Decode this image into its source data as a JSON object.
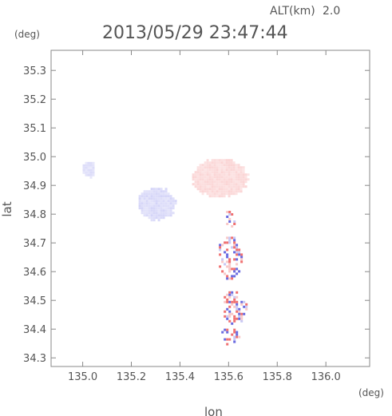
{
  "header": {
    "altitude_label": "ALT(km)",
    "altitude_value": "2.0",
    "timestamp": "2013/05/29 23:47:44"
  },
  "chart_data": {
    "type": "heatmap",
    "xlabel": "lon",
    "ylabel": "lat",
    "x_unit": "(deg)",
    "y_unit": "(deg)",
    "xlim": [
      134.87,
      136.18
    ],
    "ylim": [
      34.27,
      35.37
    ],
    "x_ticks": [
      135.0,
      135.2,
      135.4,
      135.6,
      135.8,
      136.0
    ],
    "y_ticks": [
      34.3,
      34.4,
      34.5,
      34.6,
      34.7,
      34.8,
      34.9,
      35.0,
      35.1,
      35.2,
      35.3
    ],
    "x_tick_labels": [
      "135.0",
      "135.2",
      "135.4",
      "135.6",
      "135.8",
      "136.0"
    ],
    "y_tick_labels": [
      "34.3",
      "34.4",
      "34.5",
      "34.6",
      "34.7",
      "34.8",
      "34.9",
      "35.0",
      "35.1",
      "35.2",
      "35.3"
    ],
    "colors": {
      "positive": "#f07070",
      "negative": "#6a6ae0",
      "light_positive": "#f8c8c8",
      "light_negative": "#c8c8f4"
    },
    "regions": [
      {
        "lon": 135.56,
        "lat": 34.93,
        "rlon": 0.12,
        "rlat": 0.07,
        "sign": 1,
        "strength": 0.3
      },
      {
        "lon": 135.3,
        "lat": 34.84,
        "rlon": 0.08,
        "rlat": 0.06,
        "sign": -1,
        "strength": 0.3
      },
      {
        "lon": 135.02,
        "lat": 34.96,
        "rlon": 0.03,
        "rlat": 0.03,
        "sign": -1,
        "strength": 0.25
      },
      {
        "lon": 135.6,
        "lat": 34.65,
        "rlon": 0.05,
        "rlat": 0.08,
        "sign": 0,
        "strength": 0.8
      },
      {
        "lon": 135.62,
        "lat": 34.48,
        "rlon": 0.05,
        "rlat": 0.06,
        "sign": 0,
        "strength": 0.8
      },
      {
        "lon": 135.6,
        "lat": 34.79,
        "rlon": 0.03,
        "rlat": 0.03,
        "sign": 0,
        "strength": 0.5
      },
      {
        "lon": 135.6,
        "lat": 34.38,
        "rlon": 0.04,
        "rlat": 0.03,
        "sign": 0,
        "strength": 0.6
      }
    ]
  }
}
